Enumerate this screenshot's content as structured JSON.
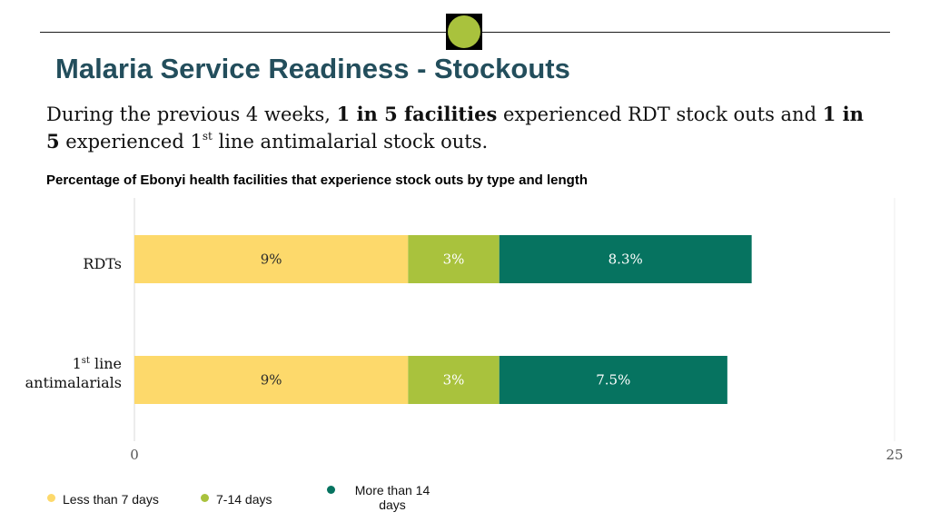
{
  "header": {
    "title": "Malaria Service Readiness - Stockouts"
  },
  "lead": {
    "part1": "During the previous 4 weeks, ",
    "bold1": "1 in 5 facilities",
    "part2": " experienced RDT stock outs and ",
    "bold2": "1 in 5",
    "part3": " experienced 1",
    "sup": "st",
    "part4": " line antimalarial stock outs."
  },
  "chart_data": {
    "type": "bar",
    "orientation": "horizontal",
    "stacked": true,
    "title": "Percentage of Ebonyi health facilities that experience stock outs by type and  length",
    "categories": [
      {
        "main": "RDTs",
        "sup": "",
        "rest": "",
        "line2": ""
      },
      {
        "main": "1",
        "sup": "st",
        "rest": " line",
        "line2": "antimalarials"
      }
    ],
    "series": [
      {
        "name": "Less than 7 days",
        "color": "#fdd96b",
        "text_color": "#2a2a2a",
        "values": [
          9,
          9
        ],
        "labels": [
          "9%",
          "9%"
        ]
      },
      {
        "name": "7-14 days",
        "color": "#a9c23d",
        "text_color": "#ffffff",
        "values": [
          3,
          3
        ],
        "labels": [
          "3%",
          "3%"
        ]
      },
      {
        "name": "More than 14 days",
        "color": "#067360",
        "text_color": "#ffffff",
        "values": [
          8.3,
          7.5
        ],
        "labels": [
          "8.3%",
          "7.5%"
        ]
      }
    ],
    "xlim": [
      0,
      25
    ],
    "xticks": [
      "0",
      "25"
    ],
    "legend_position": "bottom-left"
  },
  "legend": {
    "items": [
      {
        "label": "Less than 7 days",
        "color": "#fdd96b"
      },
      {
        "label": "7-14 days",
        "color": "#a9c23d"
      },
      {
        "label_line1": "More than 14",
        "label_line2": "days",
        "color": "#067360"
      }
    ]
  },
  "theme": {
    "title_color": "#234e5c",
    "badge_color": "#a9c23d"
  }
}
